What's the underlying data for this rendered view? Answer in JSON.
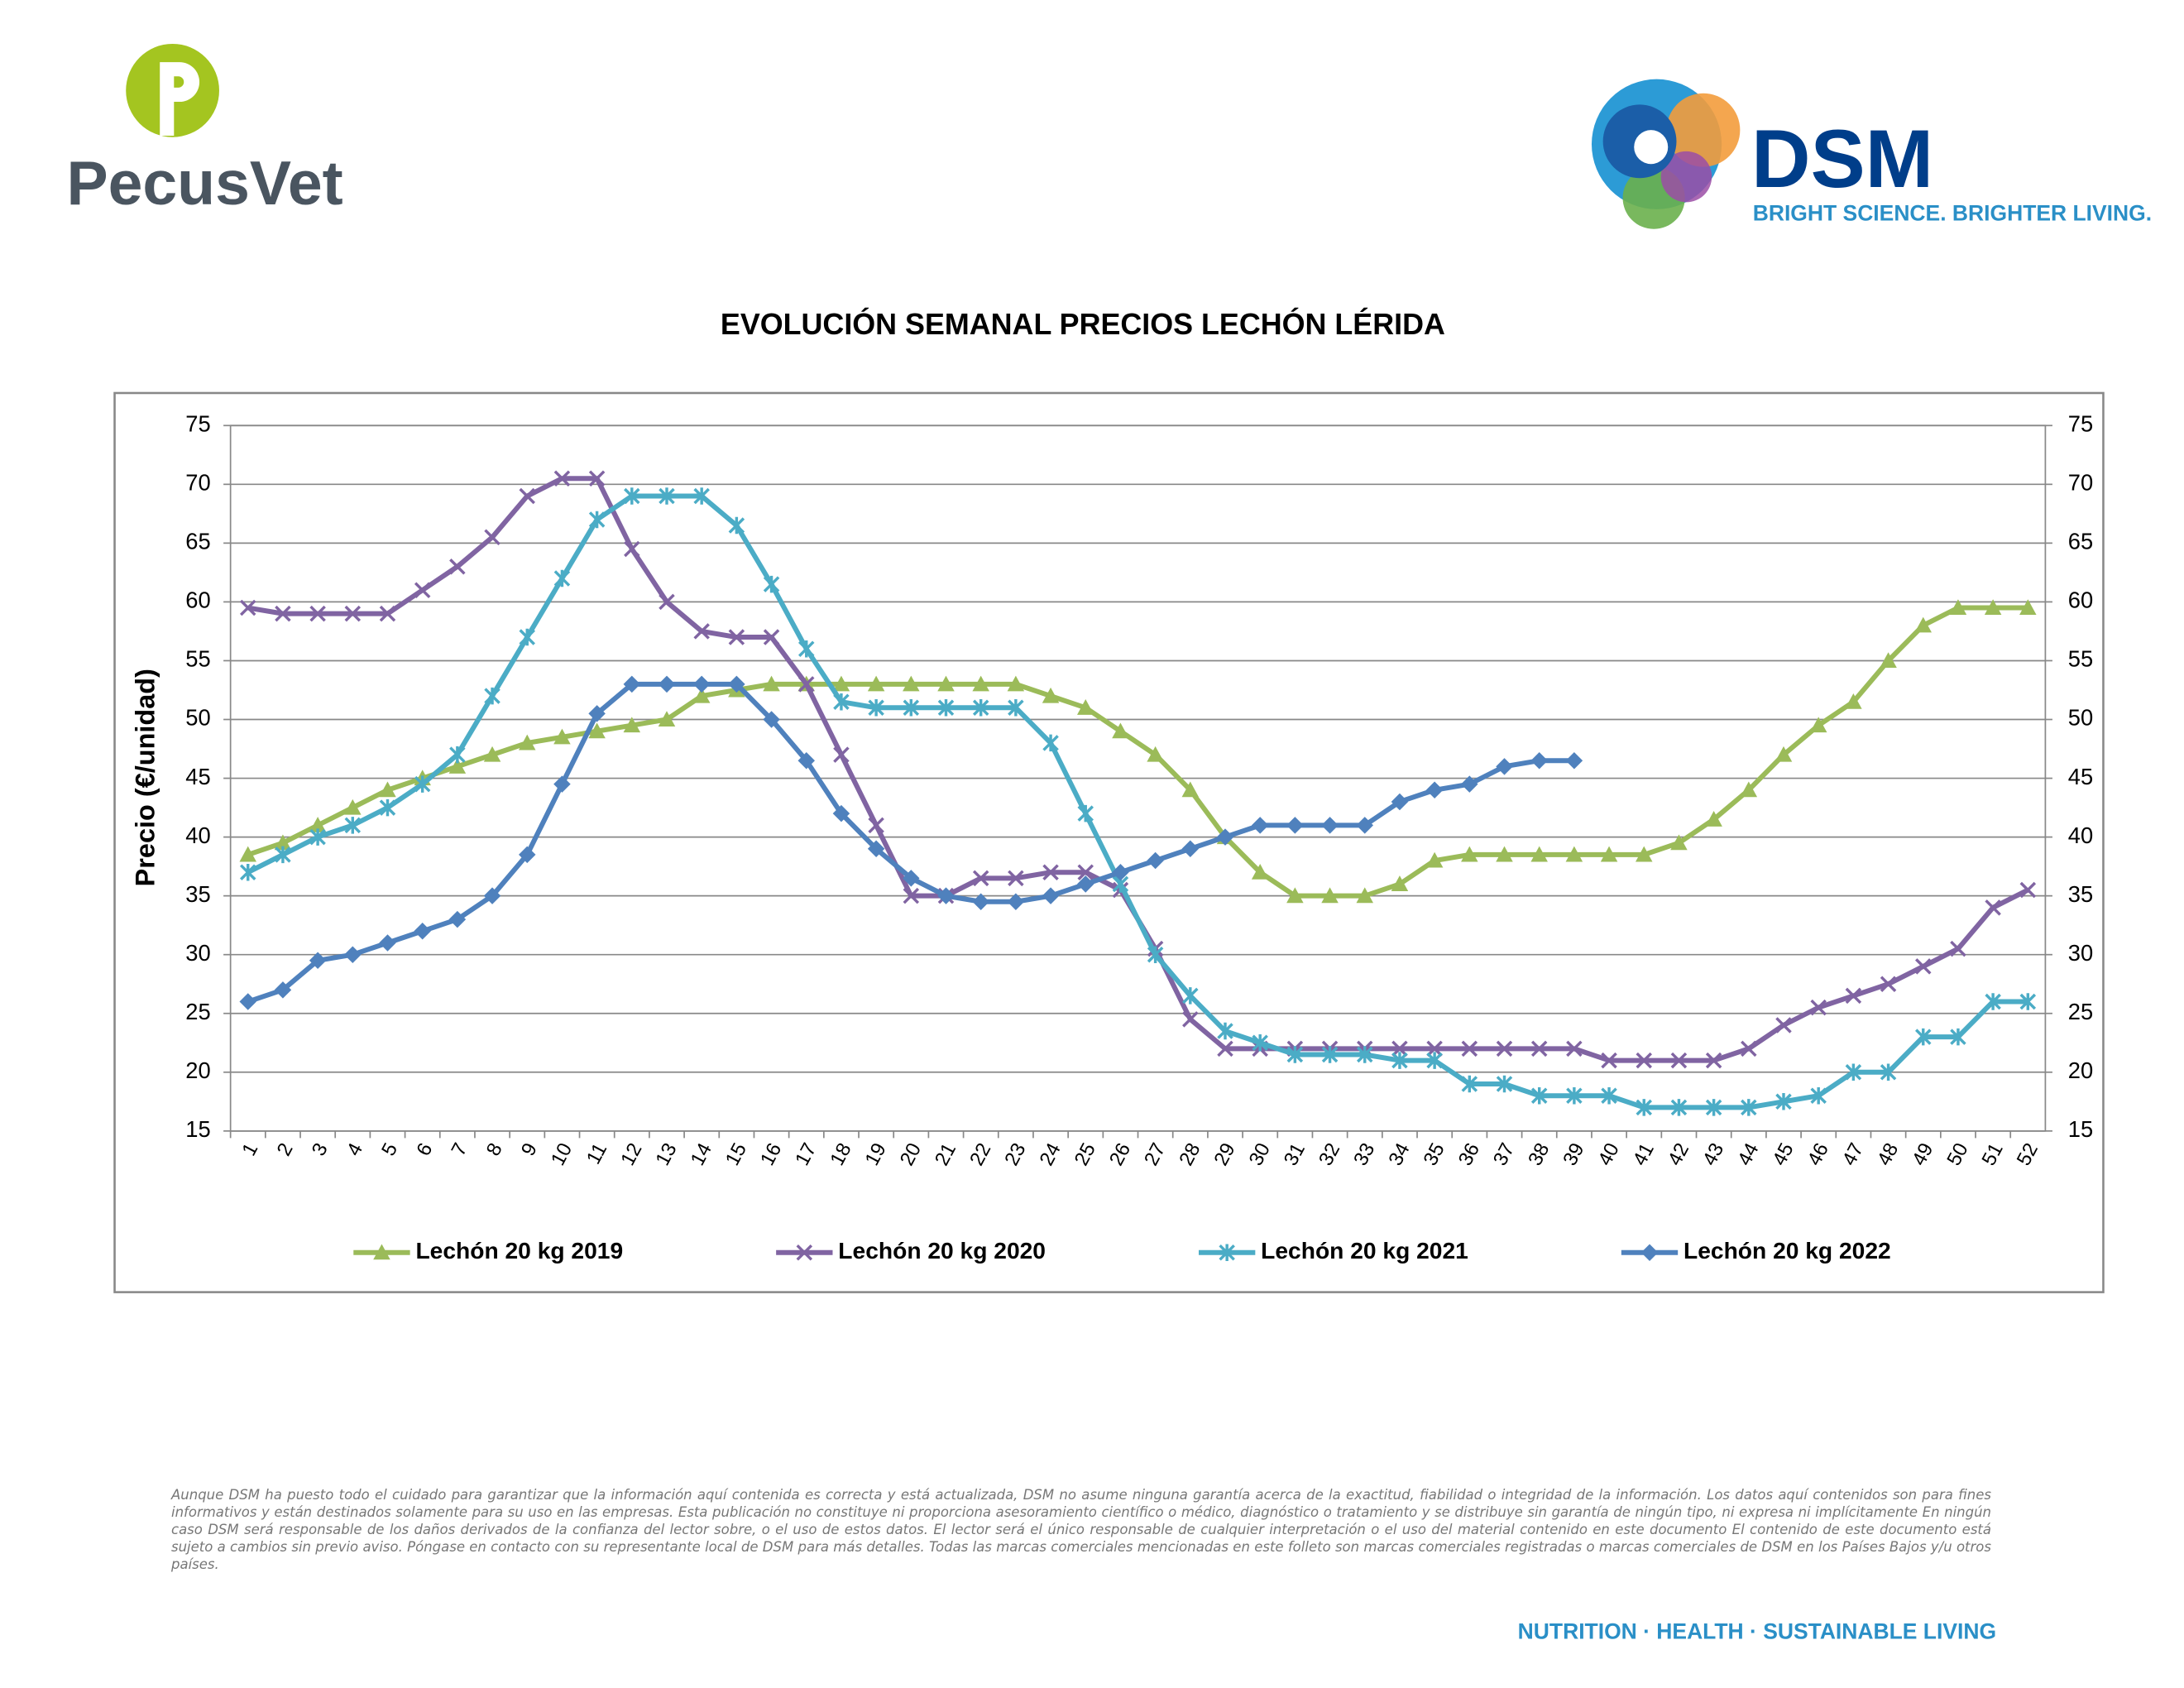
{
  "header": {
    "left_logo": "PecusVet",
    "right_logo": "DSM",
    "tagline": "BRIGHT SCIENCE. BRIGHTER LIVING."
  },
  "chart_data": {
    "type": "line",
    "title": "EVOLUCIÓN SEMANAL PRECIOS LECHÓN LÉRIDA",
    "ylabel": "Precio (€/unidad)",
    "categories": [
      "1",
      "2",
      "3",
      "4",
      "5",
      "6",
      "7",
      "8",
      "9",
      "10",
      "11",
      "12",
      "13",
      "14",
      "15",
      "16",
      "17",
      "18",
      "19",
      "20",
      "21",
      "22",
      "23",
      "24",
      "25",
      "26",
      "27",
      "28",
      "29",
      "30",
      "31",
      "32",
      "33",
      "34",
      "35",
      "36",
      "37",
      "38",
      "39",
      "40",
      "41",
      "42",
      "43",
      "44",
      "45",
      "46",
      "47",
      "48",
      "49",
      "50",
      "51",
      "52"
    ],
    "series": [
      {
        "name": "Lechón 20 kg 2019",
        "color": "#9bbb59",
        "marker": "triangle",
        "values": [
          38.5,
          39.5,
          41,
          42.5,
          44,
          45,
          46,
          47,
          48,
          48.5,
          49,
          49.5,
          50,
          52,
          52.5,
          53,
          53,
          53,
          53,
          53,
          53,
          53,
          53,
          52,
          51,
          49,
          47,
          44,
          40,
          37,
          35,
          35,
          35,
          36,
          38,
          38.5,
          38.5,
          38.5,
          38.5,
          38.5,
          38.5,
          39.5,
          41.5,
          44,
          47,
          49.5,
          51.5,
          55,
          58,
          59.5,
          59.5,
          59.5
        ]
      },
      {
        "name": "Lechón 20 kg 2020",
        "color": "#8064a2",
        "marker": "x",
        "values": [
          59.5,
          59,
          59,
          59,
          59,
          61,
          63,
          65.5,
          69,
          70.5,
          70.5,
          64.5,
          60,
          57.5,
          57,
          57,
          53,
          47,
          41,
          35,
          35,
          36.5,
          36.5,
          37,
          37,
          35.5,
          30.5,
          24.5,
          22,
          22,
          22,
          22,
          22,
          22,
          22,
          22,
          22,
          22,
          22,
          21,
          21,
          21,
          21,
          22,
          24,
          25.5,
          26.5,
          27.5,
          29,
          30.5,
          34,
          35.5
        ]
      },
      {
        "name": "Lechón 20 kg 2021",
        "color": "#4bacc6",
        "marker": "asterisk",
        "values": [
          37,
          38.5,
          40,
          41,
          42.5,
          44.5,
          47,
          52,
          57,
          62,
          67,
          69,
          69,
          69,
          66.5,
          61.5,
          56,
          51.5,
          51,
          51,
          51,
          51,
          51,
          48,
          42,
          36,
          30,
          26.5,
          23.5,
          22.5,
          21.5,
          21.5,
          21.5,
          21,
          21,
          19,
          19,
          18,
          18,
          18,
          17,
          17,
          17,
          17,
          17.5,
          18,
          20,
          20,
          23,
          23,
          26,
          26
        ]
      },
      {
        "name": "Lechón 20 kg 2022",
        "color": "#4f81bd",
        "marker": "diamond",
        "values": [
          26,
          27,
          29.5,
          30,
          31,
          32,
          33,
          35,
          38.5,
          44.5,
          50.5,
          53,
          53,
          53,
          53,
          50,
          46.5,
          42,
          39,
          36.5,
          35,
          34.5,
          34.5,
          35,
          36,
          37,
          38,
          39,
          40,
          41,
          41,
          41,
          41,
          43,
          44,
          44.5,
          46,
          46.5,
          46.5,
          null,
          null,
          null,
          null,
          null,
          null,
          null,
          null,
          null,
          null,
          null,
          null,
          null
        ]
      }
    ],
    "ylim": [
      15,
      75
    ],
    "yticks": [
      15,
      20,
      25,
      30,
      35,
      40,
      45,
      50,
      55,
      60,
      65,
      70,
      75
    ],
    "y2lim": [
      15,
      75
    ],
    "y2ticks": [
      15,
      20,
      25,
      30,
      35,
      40,
      45,
      50,
      55,
      60,
      65,
      70,
      75
    ],
    "grid": true,
    "legend": "bottom"
  },
  "footer": {
    "disclaimer": "Aunque DSM ha puesto todo el cuidado para garantizar que la información aquí contenida es correcta y está actualizada, DSM no asume ninguna garantía acerca de la exactitud, fiabilidad o integridad de la información. Los datos aquí contenidos son para fines informativos y están destinados solamente para su uso en las empresas. Esta publicación no constituye ni proporciona asesoramiento científico o médico, diagnóstico o tratamiento y se distribuye sin garantía de ningún tipo, ni expresa ni implícitamente En ningún caso DSM será responsable de los daños derivados de la confianza del lector sobre, o el uso de estos datos. El lector será el único responsable de cualquier interpretación o el uso del material contenido en este documento El contenido de este documento está sujeto a cambios sin previo aviso. Póngase en contacto con su representante local de DSM para más detalles. Todas las marcas comerciales mencionadas en este folleto son marcas comerciales registradas o marcas comerciales de DSM en los Países Bajos y/u otros países.",
    "slogan": "NUTRITION · HEALTH · SUSTAINABLE LIVING"
  }
}
